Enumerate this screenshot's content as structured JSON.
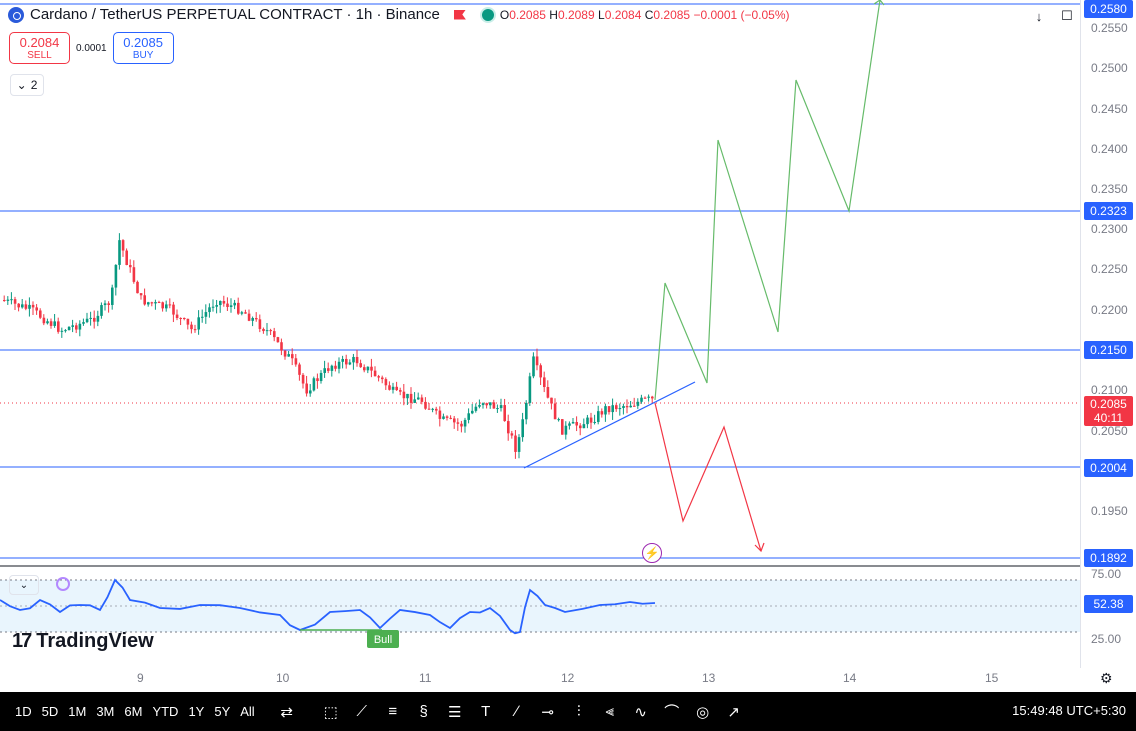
{
  "header": {
    "title": "Cardano / TetherUS PERPETUAL CONTRACT · 1h · Binance",
    "ohlc": {
      "o_label": "O",
      "o": "0.2085",
      "h_label": "H",
      "h": "0.2089",
      "l_label": "L",
      "l": "0.2084",
      "c_label": "C",
      "c": "0.2085",
      "change": "−0.0001 (−0.05%)"
    }
  },
  "trade": {
    "sell_price": "0.2084",
    "sell_label": "SELL",
    "spread": "0.0001",
    "buy_price": "0.2085",
    "buy_label": "BUY"
  },
  "indicators_count": "2",
  "price_axis": {
    "ticks": [
      "0.2550",
      "0.2500",
      "0.2450",
      "0.2400",
      "0.2350",
      "0.2300",
      "0.2250",
      "0.2200",
      "0.2100",
      "0.2050",
      "0.1950"
    ],
    "levels": [
      "0.2580",
      "0.2323",
      "0.2150",
      "0.2004",
      "0.1892"
    ],
    "current_price": "0.2085",
    "countdown": "40:11",
    "rsi_ticks": [
      "75.00",
      "25.00"
    ],
    "rsi_value": "52.38"
  },
  "time_axis": {
    "ticks": [
      "9",
      "10",
      "11",
      "12",
      "13",
      "14",
      "15"
    ]
  },
  "rsi": {
    "divergence_label": "Bull"
  },
  "logo": "TradingView",
  "toolbar": {
    "timeframes": [
      "1D",
      "5D",
      "1M",
      "3M",
      "6M",
      "YTD",
      "1Y",
      "5Y",
      "All"
    ],
    "clock": "15:49:48 UTC+5:30"
  },
  "colors": {
    "up": "#089981",
    "down": "#f23645",
    "level": "#2962ff",
    "rsi": "#2962ff",
    "bull": "#4caf50"
  }
}
